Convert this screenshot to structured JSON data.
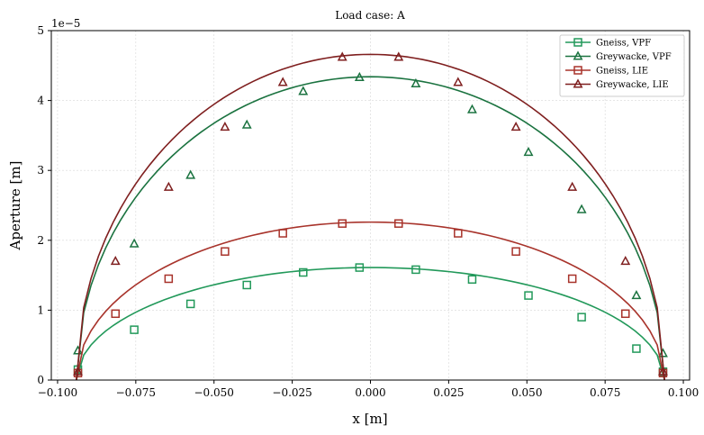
{
  "chart_data": {
    "type": "line",
    "title": "Load case: A",
    "xlabel": "x [m]",
    "ylabel": "Aperture [m]",
    "y_offset_label": "1e−5",
    "xlim": [
      -0.102,
      0.102
    ],
    "ylim": [
      0,
      5
    ],
    "x_ticks": [
      -0.1,
      -0.075,
      -0.05,
      -0.025,
      0.0,
      0.025,
      0.05,
      0.075,
      0.1
    ],
    "x_tick_labels": [
      "−0.100",
      "−0.075",
      "−0.050",
      "−0.025",
      "0.000",
      "0.025",
      "0.050",
      "0.075",
      "0.100"
    ],
    "y_ticks": [
      0,
      1,
      2,
      3,
      4,
      5
    ],
    "y_tick_labels": [
      "0",
      "1",
      "2",
      "3",
      "4",
      "5"
    ],
    "grid": true,
    "legend_position": "top-right",
    "series": [
      {
        "name": "Gneiss, VPF",
        "color": "#22995a",
        "marker": "square",
        "curve": {
          "half_length": 0.094,
          "peak": 1.61,
          "center": 0.0,
          "exponent": 0.5
        },
        "markers_x": [
          -0.0935,
          -0.0755,
          -0.0575,
          -0.0395,
          -0.0215,
          -0.0035,
          0.0145,
          0.0325,
          0.0505,
          0.0675,
          0.085,
          0.0935
        ],
        "markers_y": [
          0.15,
          0.72,
          1.09,
          1.36,
          1.54,
          1.61,
          1.58,
          1.44,
          1.21,
          0.9,
          0.45,
          0.12
        ]
      },
      {
        "name": "Greywacke, VPF",
        "color": "#1b7340",
        "marker": "triangle",
        "curve": {
          "half_length": 0.094,
          "peak": 4.34,
          "center": 0.0,
          "exponent": 0.5
        },
        "markers_x": [
          -0.0935,
          -0.0755,
          -0.0575,
          -0.0395,
          -0.0215,
          -0.0035,
          0.0145,
          0.0325,
          0.0505,
          0.0675,
          0.085,
          0.0935
        ],
        "markers_y": [
          0.42,
          1.95,
          2.93,
          3.65,
          4.13,
          4.33,
          4.24,
          3.87,
          3.26,
          2.44,
          1.21,
          0.38
        ]
      },
      {
        "name": "Gneiss, LIE",
        "color": "#a8332b",
        "marker": "square",
        "curve": {
          "half_length": 0.094,
          "peak": 2.26,
          "center": 0.0,
          "exponent": 0.5
        },
        "markers_x": [
          -0.0935,
          -0.0815,
          -0.0645,
          -0.0465,
          -0.028,
          -0.009,
          0.009,
          0.028,
          0.0465,
          0.0645,
          0.0815,
          0.0935
        ],
        "markers_y": [
          0.1,
          0.95,
          1.45,
          1.84,
          2.1,
          2.24,
          2.24,
          2.1,
          1.84,
          1.45,
          0.95,
          0.1
        ]
      },
      {
        "name": "Greywacke, LIE",
        "color": "#7f1f1f",
        "marker": "triangle",
        "curve": {
          "half_length": 0.094,
          "peak": 4.66,
          "center": 0.0,
          "exponent": 0.5
        },
        "markers_x": [
          -0.0935,
          -0.0815,
          -0.0645,
          -0.0465,
          -0.028,
          -0.009,
          0.009,
          0.028,
          0.0465,
          0.0645,
          0.0815,
          0.0935
        ],
        "markers_y": [
          0.12,
          1.7,
          2.76,
          3.62,
          4.26,
          4.62,
          4.62,
          4.26,
          3.62,
          2.76,
          1.7,
          0.12
        ]
      }
    ]
  }
}
